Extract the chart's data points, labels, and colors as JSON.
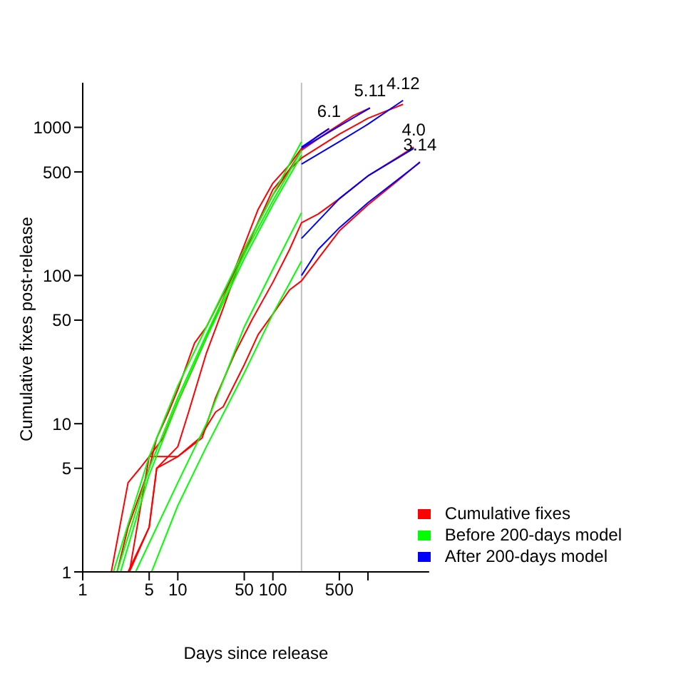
{
  "chart_data": {
    "type": "line",
    "xlabel": "Days since release",
    "ylabel": "Cumulative fixes post-release",
    "log": "xy",
    "xlim": [
      1,
      4400
    ],
    "ylim": [
      1,
      2000
    ],
    "xticks": [
      1,
      5,
      10,
      50,
      100,
      500,
      {
        "value": 1000,
        "label": null
      }
    ],
    "yticks": [
      1,
      5,
      10,
      50,
      100,
      500,
      1000
    ],
    "grid": false,
    "legend": "bottom right",
    "marker": "none",
    "line_style": "solid",
    "ref_lines": [
      {
        "axis": "x",
        "value": 200,
        "color": "#c0c0c0"
      }
    ],
    "annotations": [
      {
        "text": "6.1",
        "x": 390,
        "y": 980
      },
      {
        "text": "5.11",
        "x": 1050,
        "y": 1350
      },
      {
        "text": "4.12",
        "x": 2340,
        "y": 1520
      },
      {
        "text": "4.0",
        "x": 3030,
        "y": 735
      },
      {
        "text": "3.14",
        "x": 3520,
        "y": 585
      }
    ],
    "series": [
      {
        "name": "Cumulative fixes",
        "color": "#ff0000",
        "x": [
          2,
          3,
          4,
          5,
          7,
          10,
          15,
          20,
          30,
          50,
          70,
          100,
          150,
          200,
          300,
          390
        ],
        "values": [
          1,
          4,
          5,
          6,
          8,
          14,
          25,
          38,
          70,
          160,
          280,
          420,
          560,
          720,
          880,
          980
        ]
      },
      {
        "color": "#ff0000",
        "x": [
          2.3,
          3,
          5,
          6,
          8,
          10,
          15,
          20,
          30,
          50,
          70,
          100,
          150,
          200,
          400,
          700,
          1050
        ],
        "values": [
          1,
          2,
          5,
          8,
          12,
          17,
          35,
          45,
          75,
          140,
          230,
          380,
          520,
          700,
          950,
          1200,
          1350
        ]
      },
      {
        "color": "#ff0000",
        "x": [
          3,
          5,
          6,
          10,
          13,
          20,
          30,
          50,
          100,
          150,
          200,
          500,
          1000,
          2340
        ],
        "values": [
          1,
          2,
          5,
          7,
          12,
          30,
          60,
          150,
          350,
          520,
          620,
          900,
          1150,
          1430
        ]
      },
      {
        "color": "#ff0000",
        "x": [
          3.1,
          5,
          10,
          18,
          25,
          40,
          60,
          100,
          150,
          200,
          300,
          500,
          1000,
          2000,
          3030
        ],
        "values": [
          1,
          6,
          6,
          8,
          15,
          30,
          50,
          90,
          150,
          227,
          260,
          330,
          470,
          620,
          735
        ]
      },
      {
        "color": "#ff0000",
        "x": [
          3.1,
          5,
          6,
          10,
          17,
          25,
          30,
          50,
          70,
          100,
          150,
          200,
          300,
          500,
          1000,
          2000,
          3520
        ],
        "values": [
          1,
          2,
          5,
          6,
          8,
          12,
          13,
          25,
          40,
          55,
          80,
          92,
          130,
          200,
          300,
          430,
          585
        ]
      },
      {
        "name": "Before 200-days model",
        "color": "#00ff00",
        "x": [
          2.1,
          5,
          10,
          20,
          50,
          100,
          200
        ],
        "values": [
          1,
          6,
          18,
          45,
          150,
          350,
          800
        ]
      },
      {
        "color": "#00ff00",
        "x": [
          2.3,
          5,
          10,
          20,
          50,
          100,
          200
        ],
        "values": [
          1,
          5,
          15,
          40,
          140,
          320,
          700
        ]
      },
      {
        "color": "#00ff00",
        "x": [
          2.5,
          5,
          10,
          20,
          50,
          100,
          200
        ],
        "values": [
          1,
          4.5,
          14,
          38,
          130,
          300,
          650
        ]
      },
      {
        "color": "#00ff00",
        "x": [
          3.6,
          10,
          20,
          50,
          100,
          200
        ],
        "values": [
          1,
          4,
          10,
          45,
          110,
          265
        ]
      },
      {
        "color": "#00ff00",
        "x": [
          5.3,
          10,
          20,
          50,
          100,
          200
        ],
        "values": [
          1,
          2.8,
          7,
          22,
          55,
          125
        ]
      },
      {
        "name": "After 200-days model",
        "color": "#0000ff",
        "x": [
          200,
          390
        ],
        "values": [
          735,
          980
        ]
      },
      {
        "color": "#0000ff",
        "x": [
          200,
          1050
        ],
        "values": [
          720,
          1350
        ]
      },
      {
        "color": "#0000ff",
        "x": [
          200,
          500,
          1000,
          2340
        ],
        "values": [
          565,
          800,
          1050,
          1520
        ]
      },
      {
        "color": "#0000ff",
        "x": [
          200,
          500,
          1000,
          3030
        ],
        "values": [
          178,
          330,
          470,
          720
        ]
      },
      {
        "color": "#0000ff",
        "x": [
          200,
          300,
          500,
          1000,
          3520
        ],
        "values": [
          100,
          150,
          210,
          310,
          580
        ]
      }
    ]
  }
}
